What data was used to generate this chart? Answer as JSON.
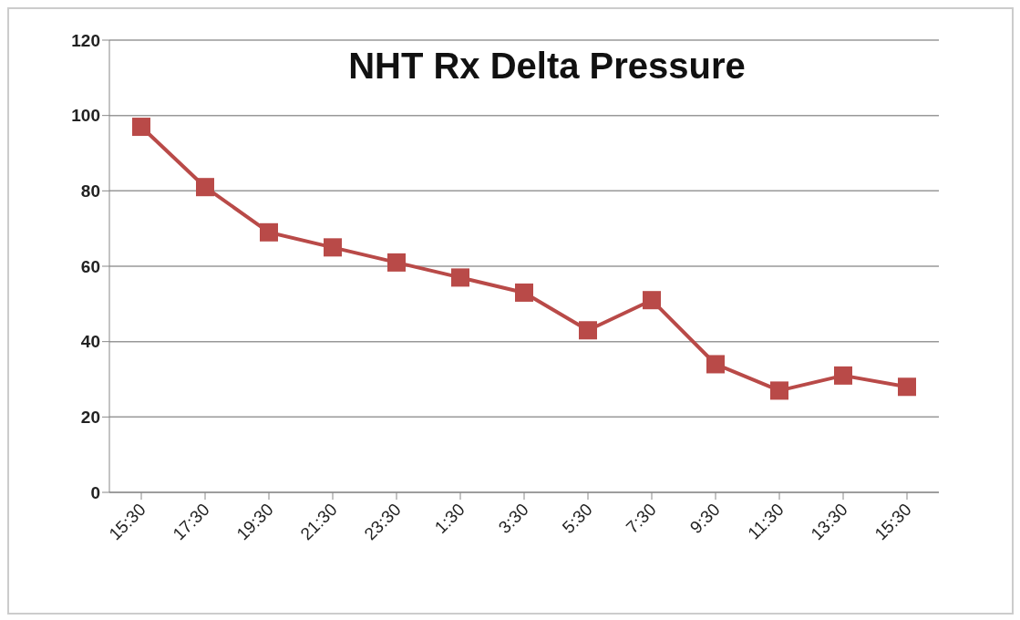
{
  "chart_data": {
    "type": "line",
    "title": "NHT Rx Delta Pressure",
    "categories": [
      "15:30",
      "17:30",
      "19:30",
      "21:30",
      "23:30",
      "1:30",
      "3:30",
      "5:30",
      "7:30",
      "9:30",
      "11:30",
      "13:30",
      "15:30"
    ],
    "series": [
      {
        "color": "#b94a48",
        "values": [
          97,
          81,
          69,
          65,
          61,
          57,
          53,
          43,
          51,
          34,
          27,
          31,
          28
        ]
      }
    ],
    "ylim": [
      0,
      120
    ],
    "yticks": [
      0,
      20,
      40,
      60,
      80,
      100,
      120
    ],
    "grid": "y",
    "marker": "square",
    "line_style": "solid",
    "legend": false
  }
}
